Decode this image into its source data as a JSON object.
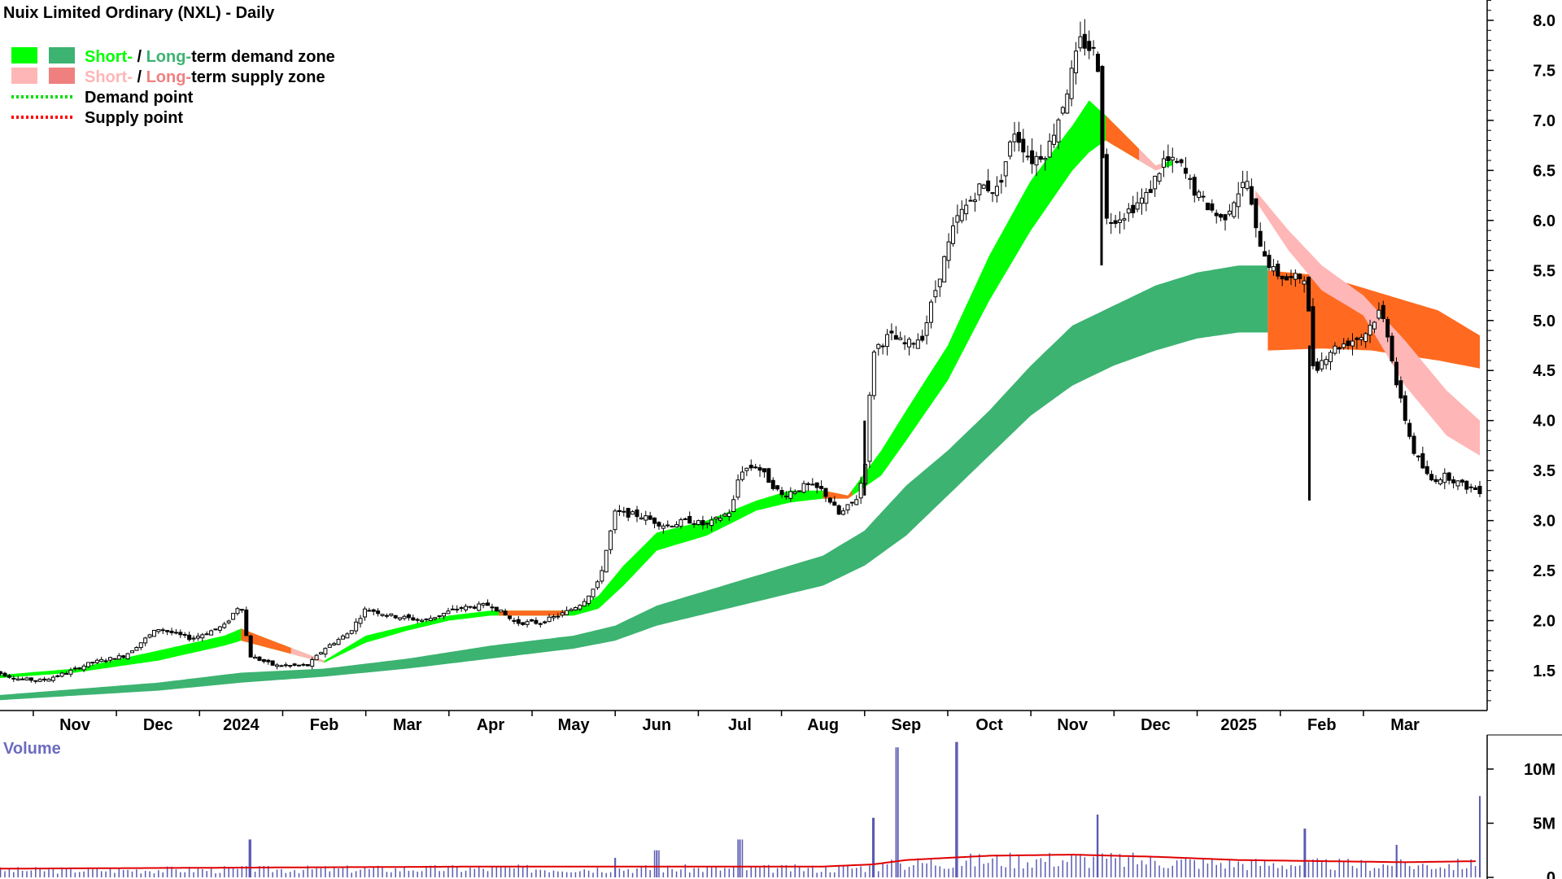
{
  "chart_data": {
    "type": "candlestick",
    "title": "Nuix Limited Ordinary (NXL) - Daily",
    "ylim": [
      1.0,
      8.2
    ],
    "yticks": [
      "8.0",
      "7.5",
      "7.0",
      "6.5",
      "6.0",
      "5.5",
      "5.0",
      "4.5",
      "4.0",
      "3.5",
      "3.0",
      "2.5",
      "2.0",
      "1.5"
    ],
    "x_range": [
      0,
      22
    ],
    "months": [
      {
        "label": "Nov",
        "x": 1.0
      },
      {
        "label": "Dec",
        "x": 2.0
      },
      {
        "label": "2024",
        "x": 3.0
      },
      {
        "label": "Feb",
        "x": 4.0
      },
      {
        "label": "Mar",
        "x": 5.0
      },
      {
        "label": "Apr",
        "x": 6.0
      },
      {
        "label": "May",
        "x": 7.0
      },
      {
        "label": "Jun",
        "x": 8.0
      },
      {
        "label": "Jul",
        "x": 9.0
      },
      {
        "label": "Aug",
        "x": 10.0
      },
      {
        "label": "Sep",
        "x": 11.0
      },
      {
        "label": "Oct",
        "x": 12.0
      },
      {
        "label": "Nov",
        "x": 13.0
      },
      {
        "label": "Dec",
        "x": 14.0
      },
      {
        "label": "2025",
        "x": 15.0
      },
      {
        "label": "Feb",
        "x": 16.0
      },
      {
        "label": "Mar",
        "x": 17.0
      }
    ],
    "price_path": [
      [
        0.0,
        1.5
      ],
      [
        0.3,
        1.42
      ],
      [
        0.6,
        1.4
      ],
      [
        0.9,
        1.48
      ],
      [
        1.2,
        1.58
      ],
      [
        1.6,
        1.65
      ],
      [
        2.0,
        1.92
      ],
      [
        2.4,
        1.82
      ],
      [
        2.8,
        1.95
      ],
      [
        3.0,
        2.18
      ],
      [
        3.1,
        1.65
      ],
      [
        3.4,
        1.55
      ],
      [
        3.8,
        1.55
      ],
      [
        4.0,
        1.72
      ],
      [
        4.3,
        1.88
      ],
      [
        4.5,
        2.12
      ],
      [
        4.8,
        2.05
      ],
      [
        5.2,
        2.0
      ],
      [
        5.6,
        2.12
      ],
      [
        6.0,
        2.16
      ],
      [
        6.3,
        1.98
      ],
      [
        6.6,
        1.98
      ],
      [
        6.9,
        2.08
      ],
      [
        7.1,
        2.18
      ],
      [
        7.3,
        2.38
      ],
      [
        7.5,
        3.08
      ],
      [
        7.8,
        3.05
      ],
      [
        8.1,
        2.95
      ],
      [
        8.4,
        3.0
      ],
      [
        8.6,
        2.95
      ],
      [
        8.9,
        3.1
      ],
      [
        9.0,
        3.5
      ],
      [
        9.2,
        3.55
      ],
      [
        9.5,
        3.25
      ],
      [
        9.8,
        3.35
      ],
      [
        10.0,
        3.3
      ],
      [
        10.2,
        3.05
      ],
      [
        10.4,
        3.22
      ],
      [
        10.5,
        3.5
      ],
      [
        10.6,
        4.7
      ],
      [
        10.8,
        4.85
      ],
      [
        11.0,
        4.75
      ],
      [
        11.2,
        4.85
      ],
      [
        11.4,
        5.45
      ],
      [
        11.6,
        6.0
      ],
      [
        11.9,
        6.35
      ],
      [
        12.1,
        6.3
      ],
      [
        12.3,
        6.9
      ],
      [
        12.5,
        6.6
      ],
      [
        12.7,
        6.7
      ],
      [
        12.9,
        7.2
      ],
      [
        13.1,
        7.8
      ],
      [
        13.3,
        7.65
      ],
      [
        13.4,
        6.0
      ],
      [
        13.6,
        6.05
      ],
      [
        13.9,
        6.25
      ],
      [
        14.1,
        6.6
      ],
      [
        14.3,
        6.55
      ],
      [
        14.5,
        6.25
      ],
      [
        14.8,
        6.0
      ],
      [
        15.0,
        6.3
      ],
      [
        15.1,
        6.4
      ],
      [
        15.2,
        5.9
      ],
      [
        15.4,
        5.5
      ],
      [
        15.6,
        5.4
      ],
      [
        15.8,
        5.45
      ],
      [
        15.9,
        4.5
      ],
      [
        16.1,
        4.7
      ],
      [
        16.3,
        4.78
      ],
      [
        16.5,
        4.85
      ],
      [
        16.7,
        5.1
      ],
      [
        16.8,
        4.85
      ],
      [
        16.9,
        4.35
      ],
      [
        17.1,
        3.7
      ],
      [
        17.3,
        3.4
      ],
      [
        17.5,
        3.45
      ],
      [
        17.7,
        3.35
      ],
      [
        17.9,
        3.3
      ]
    ],
    "demand_zone_short_upper": [
      [
        0.0,
        1.45
      ],
      [
        1.0,
        1.52
      ],
      [
        2.0,
        1.7
      ],
      [
        2.8,
        1.85
      ],
      [
        3.0,
        1.92
      ],
      [
        4.0,
        1.6
      ],
      [
        4.5,
        1.85
      ],
      [
        5.0,
        1.95
      ],
      [
        5.5,
        2.05
      ],
      [
        6.0,
        2.1
      ],
      [
        7.0,
        2.1
      ],
      [
        7.3,
        2.25
      ],
      [
        7.6,
        2.55
      ],
      [
        8.0,
        2.88
      ],
      [
        8.6,
        3.0
      ],
      [
        9.2,
        3.2
      ],
      [
        9.6,
        3.3
      ],
      [
        10.0,
        3.3
      ],
      [
        10.3,
        3.25
      ],
      [
        10.7,
        3.7
      ],
      [
        11.0,
        4.1
      ],
      [
        11.5,
        4.75
      ],
      [
        12.0,
        5.65
      ],
      [
        12.5,
        6.4
      ],
      [
        13.0,
        6.95
      ],
      [
        13.2,
        7.2
      ],
      [
        13.4,
        7.05
      ],
      [
        14.0,
        6.55
      ],
      [
        14.2,
        6.6
      ]
    ],
    "demand_zone_short_lower": [
      [
        0.0,
        1.42
      ],
      [
        1.0,
        1.48
      ],
      [
        2.0,
        1.6
      ],
      [
        2.8,
        1.75
      ],
      [
        3.0,
        1.8
      ],
      [
        4.0,
        1.58
      ],
      [
        4.5,
        1.78
      ],
      [
        5.0,
        1.9
      ],
      [
        5.5,
        2.0
      ],
      [
        6.0,
        2.05
      ],
      [
        7.0,
        2.05
      ],
      [
        7.3,
        2.12
      ],
      [
        7.6,
        2.35
      ],
      [
        8.0,
        2.7
      ],
      [
        8.6,
        2.85
      ],
      [
        9.2,
        3.1
      ],
      [
        9.6,
        3.18
      ],
      [
        10.0,
        3.22
      ],
      [
        10.3,
        3.22
      ],
      [
        10.7,
        3.45
      ],
      [
        11.0,
        3.8
      ],
      [
        11.5,
        4.4
      ],
      [
        12.0,
        5.2
      ],
      [
        12.5,
        5.9
      ],
      [
        13.0,
        6.5
      ],
      [
        13.2,
        6.68
      ],
      [
        13.4,
        6.8
      ],
      [
        14.0,
        6.5
      ],
      [
        14.2,
        6.55
      ]
    ],
    "demand_zone_long_upper": [
      [
        0.0,
        1.25
      ],
      [
        2.0,
        1.38
      ],
      [
        3.0,
        1.48
      ],
      [
        4.0,
        1.52
      ],
      [
        5.0,
        1.62
      ],
      [
        6.0,
        1.75
      ],
      [
        7.0,
        1.85
      ],
      [
        7.5,
        1.95
      ],
      [
        8.0,
        2.15
      ],
      [
        9.0,
        2.4
      ],
      [
        10.0,
        2.65
      ],
      [
        10.5,
        2.9
      ],
      [
        11.0,
        3.35
      ],
      [
        11.5,
        3.7
      ],
      [
        12.0,
        4.1
      ],
      [
        12.5,
        4.55
      ],
      [
        13.0,
        4.95
      ],
      [
        13.5,
        5.15
      ],
      [
        14.0,
        5.35
      ],
      [
        14.5,
        5.48
      ],
      [
        15.0,
        5.55
      ]
    ],
    "demand_zone_long_lower": [
      [
        0.0,
        1.2
      ],
      [
        2.0,
        1.3
      ],
      [
        3.0,
        1.38
      ],
      [
        4.0,
        1.44
      ],
      [
        5.0,
        1.52
      ],
      [
        6.0,
        1.62
      ],
      [
        7.0,
        1.72
      ],
      [
        7.5,
        1.8
      ],
      [
        8.0,
        1.95
      ],
      [
        9.0,
        2.15
      ],
      [
        10.0,
        2.35
      ],
      [
        10.5,
        2.55
      ],
      [
        11.0,
        2.85
      ],
      [
        11.5,
        3.25
      ],
      [
        12.0,
        3.65
      ],
      [
        12.5,
        4.05
      ],
      [
        13.0,
        4.35
      ],
      [
        13.5,
        4.55
      ],
      [
        14.0,
        4.7
      ],
      [
        14.5,
        4.82
      ],
      [
        15.0,
        4.88
      ]
    ],
    "supply_zone_long": [
      {
        "x": 15.35,
        "upper": 5.5,
        "lower": 4.7
      },
      {
        "x": 16.0,
        "upper": 5.45,
        "lower": 4.72
      },
      {
        "x": 16.6,
        "upper": 5.3,
        "lower": 4.7
      },
      {
        "x": 17.4,
        "upper": 5.1,
        "lower": 4.6
      },
      {
        "x": 17.9,
        "upper": 4.85,
        "lower": 4.52
      }
    ],
    "supply_zone_short": [
      {
        "x": 15.2,
        "upper": 6.3,
        "lower": 6.2
      },
      {
        "x": 15.6,
        "upper": 5.9,
        "lower": 5.7
      },
      {
        "x": 16.0,
        "upper": 5.55,
        "lower": 5.3
      },
      {
        "x": 16.5,
        "upper": 5.25,
        "lower": 5.05
      },
      {
        "x": 17.0,
        "upper": 4.8,
        "lower": 4.35
      },
      {
        "x": 17.5,
        "upper": 4.3,
        "lower": 3.85
      },
      {
        "x": 17.9,
        "upper": 4.0,
        "lower": 3.65
      }
    ],
    "legend": [
      {
        "short": "Short-",
        "sep": " / ",
        "long": "Long-",
        "rest": "term demand zone",
        "short_color": "#00ff00",
        "long_color": "#3cb371"
      },
      {
        "short": "Short-",
        "sep": " / ",
        "long": "Long-",
        "rest": "term supply zone",
        "short_color": "#ffb6b6",
        "long_color": "#f08080"
      },
      {
        "label": "Demand point",
        "color": "#00ff00"
      },
      {
        "label": "Supply point",
        "color": "#ff0000"
      }
    ],
    "volume": {
      "title": "Volume",
      "ylim": [
        0,
        13
      ],
      "yticks": [
        "10M",
        "5M",
        "0"
      ],
      "moving_average": [
        [
          0,
          0.8
        ],
        [
          3,
          0.9
        ],
        [
          6,
          1.0
        ],
        [
          10,
          1.0
        ],
        [
          10.6,
          1.2
        ],
        [
          11,
          1.6
        ],
        [
          12,
          2.0
        ],
        [
          13,
          2.1
        ],
        [
          13.5,
          2.0
        ],
        [
          14,
          1.9
        ],
        [
          15,
          1.6
        ],
        [
          16,
          1.5
        ],
        [
          17,
          1.4
        ],
        [
          17.9,
          1.5
        ]
      ],
      "spikes": [
        [
          3.1,
          3.5
        ],
        [
          7.5,
          1.8
        ],
        [
          8.0,
          2.5
        ],
        [
          9.0,
          3.5
        ],
        [
          10.6,
          5.5
        ],
        [
          10.9,
          12.0
        ],
        [
          11.6,
          12.5
        ],
        [
          13.3,
          5.8
        ],
        [
          15.8,
          4.5
        ],
        [
          16.9,
          3.0
        ],
        [
          17.9,
          7.5
        ]
      ],
      "colors": {
        "bars": "#5a5ab4",
        "average": "#e00000"
      }
    },
    "colors": {
      "short_demand": "#00ff00",
      "long_demand": "#3cb371",
      "short_supply": "#ffb6b6",
      "long_supply": "#ff6a20",
      "candle": "#000000"
    }
  }
}
